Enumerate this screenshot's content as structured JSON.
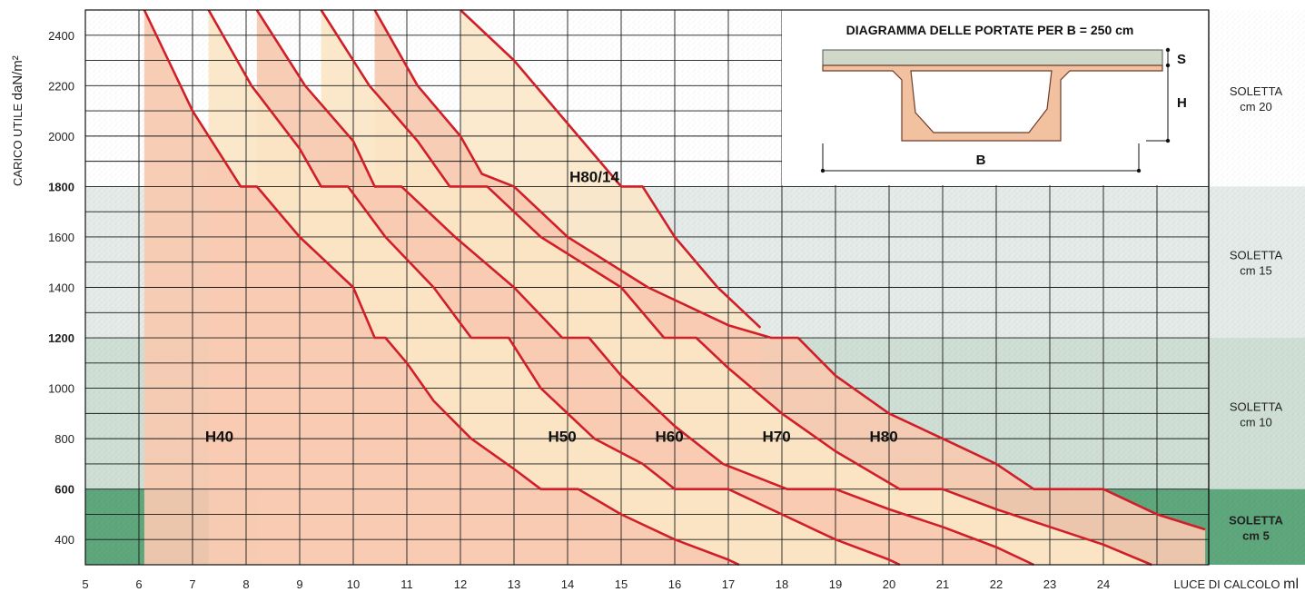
{
  "chart_data": {
    "type": "line",
    "title": "",
    "xlabel": "LUCE DI CALCOLO",
    "xunit": "ml",
    "ylabel": "CARICO UTILE",
    "yunit": "daN/m²",
    "xlim": [
      5,
      25
    ],
    "ylim": [
      300,
      2500
    ],
    "x_ticks": [
      "5",
      "6",
      "7",
      "8",
      "9",
      "10",
      "11",
      "12",
      "13",
      "14",
      "15",
      "16",
      "17",
      "18",
      "19",
      "20",
      "21",
      "22",
      "23",
      "24"
    ],
    "y_ticks": [
      "400",
      "600",
      "800",
      "1000",
      "1200",
      "1400",
      "1600",
      "1800",
      "2000",
      "2200",
      "2400"
    ],
    "y_ticks_bold": [
      "600",
      "1200",
      "1800"
    ],
    "grid": true,
    "bands": [
      {
        "label": "SOLETTA cm 20",
        "line1": "SOLETTA",
        "line2": "cm 20",
        "y_from": 1800,
        "y_to": 2500,
        "bold": false,
        "color": "#ffffff"
      },
      {
        "label": "SOLETTA cm 15",
        "line1": "SOLETTA",
        "line2": "cm 15",
        "y_from": 1200,
        "y_to": 1800,
        "bold": false,
        "color": "#e4ebe8"
      },
      {
        "label": "SOLETTA cm 10",
        "line1": "SOLETTA",
        "line2": "cm 10",
        "y_from": 600,
        "y_to": 1200,
        "bold": false,
        "color": "#cfdfd5"
      },
      {
        "label": "SOLETTA cm 5",
        "line1": "SOLETTA",
        "line2": "cm 5",
        "y_from": 300,
        "y_to": 600,
        "bold": true,
        "color": "#5fa77c"
      }
    ],
    "series": [
      {
        "name": "H40",
        "label_at": [
          7.5,
          810
        ],
        "start_x": 6.1,
        "points": [
          [
            6.1,
            2500
          ],
          [
            7,
            2100
          ],
          [
            7.9,
            1800
          ],
          [
            8.2,
            1800
          ],
          [
            9,
            1600
          ],
          [
            9.5,
            1500
          ],
          [
            10,
            1400
          ],
          [
            10.4,
            1200
          ],
          [
            10.6,
            1200
          ],
          [
            11,
            1100
          ],
          [
            11.5,
            950
          ],
          [
            12.2,
            800
          ],
          [
            13,
            680
          ],
          [
            13.5,
            600
          ],
          [
            14.2,
            600
          ],
          [
            15,
            500
          ],
          [
            16,
            400
          ],
          [
            17,
            320
          ],
          [
            17.2,
            300
          ]
        ]
      },
      {
        "name": "H50",
        "label_at": [
          13.9,
          810
        ],
        "start_x": 7.3,
        "points": [
          [
            7.3,
            2500
          ],
          [
            8.1,
            2200
          ],
          [
            9,
            1950
          ],
          [
            9.4,
            1800
          ],
          [
            9.9,
            1800
          ],
          [
            10.6,
            1600
          ],
          [
            11.5,
            1400
          ],
          [
            12.2,
            1200
          ],
          [
            12.9,
            1200
          ],
          [
            13.5,
            1000
          ],
          [
            14.5,
            800
          ],
          [
            15.4,
            700
          ],
          [
            16,
            600
          ],
          [
            17,
            600
          ],
          [
            18,
            500
          ],
          [
            19,
            400
          ],
          [
            20,
            320
          ],
          [
            20.2,
            300
          ]
        ]
      },
      {
        "name": "H60",
        "label_at": [
          15.9,
          810
        ],
        "start_x": 8.2,
        "points": [
          [
            8.2,
            2500
          ],
          [
            9.1,
            2200
          ],
          [
            10,
            1980
          ],
          [
            10.4,
            1800
          ],
          [
            10.9,
            1800
          ],
          [
            11.9,
            1600
          ],
          [
            13,
            1400
          ],
          [
            13.9,
            1200
          ],
          [
            14.4,
            1200
          ],
          [
            15,
            1050
          ],
          [
            16,
            850
          ],
          [
            16.9,
            700
          ],
          [
            18.1,
            600
          ],
          [
            19,
            600
          ],
          [
            20,
            520
          ],
          [
            21,
            450
          ],
          [
            22,
            370
          ],
          [
            22.7,
            300
          ]
        ]
      },
      {
        "name": "H70",
        "label_at": [
          17.9,
          810
        ],
        "start_x": 9.4,
        "points": [
          [
            9.4,
            2500
          ],
          [
            10.3,
            2200
          ],
          [
            11.2,
            1980
          ],
          [
            11.8,
            1800
          ],
          [
            12.5,
            1800
          ],
          [
            13.5,
            1600
          ],
          [
            15,
            1400
          ],
          [
            15.8,
            1200
          ],
          [
            16.4,
            1200
          ],
          [
            17,
            1080
          ],
          [
            18,
            900
          ],
          [
            19,
            750
          ],
          [
            20.2,
            600
          ],
          [
            21,
            600
          ],
          [
            22,
            520
          ],
          [
            23,
            450
          ],
          [
            24,
            380
          ],
          [
            24.9,
            300
          ]
        ]
      },
      {
        "name": "H80",
        "label_at": [
          19.9,
          810
        ],
        "start_x": 10.4,
        "points": [
          [
            10.4,
            2500
          ],
          [
            11.2,
            2200
          ],
          [
            12,
            2000
          ],
          [
            12.4,
            1850
          ],
          [
            13,
            1800
          ],
          [
            14,
            1600
          ],
          [
            15.5,
            1400
          ],
          [
            17,
            1250
          ],
          [
            17.8,
            1200
          ],
          [
            18.3,
            1200
          ],
          [
            19,
            1050
          ],
          [
            20,
            900
          ],
          [
            21,
            800
          ],
          [
            22,
            700
          ],
          [
            22.7,
            600
          ],
          [
            24,
            600
          ],
          [
            25,
            500
          ],
          [
            25.9,
            440
          ]
        ]
      },
      {
        "name": "H80/14",
        "label_at": [
          14.5,
          1840
        ],
        "start_x": 12,
        "points": [
          [
            12,
            2500
          ],
          [
            13,
            2300
          ],
          [
            14,
            2050
          ],
          [
            15,
            1800
          ],
          [
            15.4,
            1800
          ],
          [
            16,
            1600
          ],
          [
            16.8,
            1400
          ],
          [
            17.6,
            1240
          ]
        ]
      }
    ],
    "annotations": [
      {
        "text": "DIAGRAMMA DELLE PORTATE PER B = 250 cm"
      },
      {
        "text": "S"
      },
      {
        "text": "H"
      },
      {
        "text": "B"
      }
    ]
  },
  "labels": {
    "ylabel_main": "CARICO UTILE ",
    "ylabel_unit": "daN/m²",
    "xlabel_main": "LUCE DI CALCOLO ",
    "xlabel_unit": "ml",
    "inset_title": "DIAGRAMMA DELLE PORTATE PER B = 250 cm",
    "inset_s": "S",
    "inset_h": "H",
    "inset_b": "B"
  },
  "colors": {
    "curve": "#d11f2a",
    "fill_base": "#f7c9b0",
    "fill_light": "#fbe6c6",
    "grid": "#1a1a1a",
    "inset_section": "#f2c19f",
    "inset_slab": "#cfd8c9"
  }
}
